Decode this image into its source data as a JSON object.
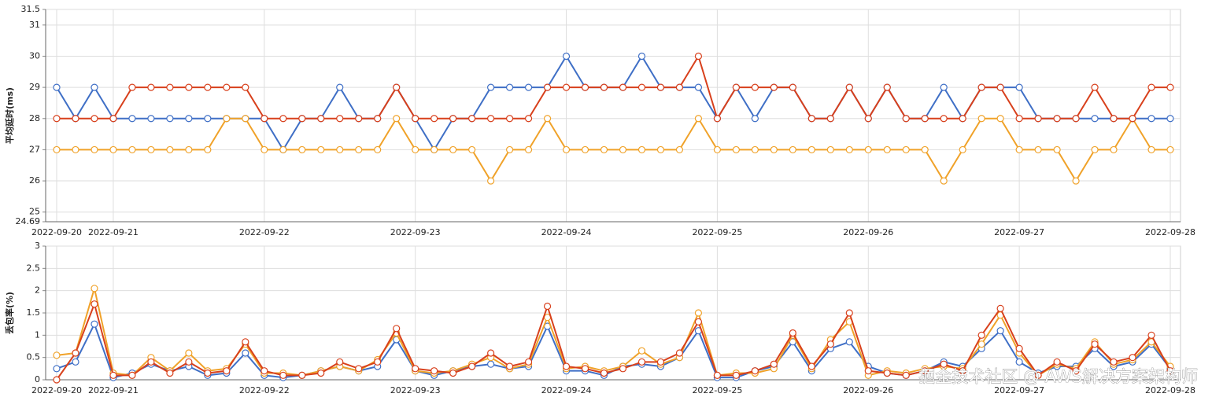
{
  "chart_data": [
    {
      "type": "line",
      "ylabel": "平均延时(ms)",
      "categories": [
        "2022-09-20",
        null,
        null,
        "2022-09-21",
        null,
        null,
        null,
        null,
        null,
        null,
        null,
        "2022-09-22",
        null,
        null,
        null,
        null,
        null,
        null,
        null,
        "2022-09-23",
        null,
        null,
        null,
        null,
        null,
        null,
        null,
        "2022-09-24",
        null,
        null,
        null,
        null,
        null,
        null,
        null,
        "2022-09-25",
        null,
        null,
        null,
        null,
        null,
        null,
        null,
        "2022-09-26",
        null,
        null,
        null,
        null,
        null,
        null,
        null,
        "2022-09-27",
        null,
        null,
        null,
        null,
        null,
        null,
        null,
        "2022-09-28"
      ],
      "ylim": [
        24.69,
        31.5
      ],
      "yticks": [
        24.69,
        25,
        26,
        27,
        28,
        29,
        30,
        31,
        31.5
      ],
      "grid": true,
      "series": [
        {
          "color": "#3f6fc6",
          "values": [
            29,
            28,
            29,
            28,
            28,
            28,
            28,
            28,
            28,
            28,
            28,
            28,
            27,
            28,
            28,
            29,
            28,
            28,
            29,
            28,
            27,
            28,
            28,
            29,
            29,
            29,
            29,
            30,
            29,
            29,
            29,
            30,
            29,
            29,
            29,
            28,
            29,
            28,
            29,
            29,
            28,
            28,
            29,
            28,
            29,
            28,
            28,
            29,
            28,
            29,
            29,
            29,
            28,
            28,
            28,
            28,
            28,
            28,
            28,
            28
          ]
        },
        {
          "color": "#f0a229",
          "values": [
            27,
            27,
            27,
            27,
            27,
            27,
            27,
            27,
            27,
            28,
            28,
            27,
            27,
            27,
            27,
            27,
            27,
            27,
            28,
            27,
            27,
            27,
            27,
            26,
            27,
            27,
            28,
            27,
            27,
            27,
            27,
            27,
            27,
            27,
            28,
            27,
            27,
            27,
            27,
            27,
            27,
            27,
            27,
            27,
            27,
            27,
            27,
            26,
            27,
            28,
            28,
            27,
            27,
            27,
            26,
            27,
            27,
            28,
            27,
            27
          ]
        },
        {
          "color": "#d8401c",
          "values": [
            28,
            28,
            28,
            28,
            29,
            29,
            29,
            29,
            29,
            29,
            29,
            28,
            28,
            28,
            28,
            28,
            28,
            28,
            29,
            28,
            28,
            28,
            28,
            28,
            28,
            28,
            29,
            29,
            29,
            29,
            29,
            29,
            29,
            29,
            30,
            28,
            29,
            29,
            29,
            29,
            28,
            28,
            29,
            28,
            29,
            28,
            28,
            28,
            28,
            29,
            29,
            28,
            28,
            28,
            28,
            29,
            28,
            28,
            29,
            29
          ]
        }
      ]
    },
    {
      "type": "line",
      "ylabel": "丢包率(%)",
      "categories": [
        "2022-09-20",
        null,
        null,
        "2022-09-21",
        null,
        null,
        null,
        null,
        null,
        null,
        null,
        "2022-09-22",
        null,
        null,
        null,
        null,
        null,
        null,
        null,
        "2022-09-23",
        null,
        null,
        null,
        null,
        null,
        null,
        null,
        "2022-09-24",
        null,
        null,
        null,
        null,
        null,
        null,
        null,
        "2022-09-25",
        null,
        null,
        null,
        null,
        null,
        null,
        null,
        "2022-09-26",
        null,
        null,
        null,
        null,
        null,
        null,
        null,
        "2022-09-27",
        null,
        null,
        null,
        null,
        null,
        null,
        null,
        "2022-09-28"
      ],
      "ylim": [
        0,
        3
      ],
      "yticks": [
        0,
        0.5,
        1,
        1.5,
        2,
        2.5,
        3
      ],
      "grid": true,
      "series": [
        {
          "color": "#3f6fc6",
          "values": [
            0.25,
            0.4,
            1.25,
            0.05,
            0.15,
            0.35,
            0.2,
            0.3,
            0.1,
            0.15,
            0.6,
            0.1,
            0.05,
            0.1,
            0.2,
            0.3,
            0.2,
            0.3,
            0.9,
            0.2,
            0.1,
            0.2,
            0.3,
            0.35,
            0.25,
            0.3,
            1.2,
            0.2,
            0.2,
            0.1,
            0.3,
            0.35,
            0.3,
            0.5,
            1.1,
            0.05,
            0.05,
            0.2,
            0.3,
            0.85,
            0.2,
            0.7,
            0.85,
            0.3,
            0.15,
            0.1,
            0.2,
            0.4,
            0.3,
            0.7,
            1.1,
            0.4,
            0.15,
            0.3,
            0.3,
            0.7,
            0.3,
            0.4,
            0.8,
            0.25
          ]
        },
        {
          "color": "#f0a229",
          "values": [
            0.55,
            0.6,
            2.05,
            0.15,
            0.1,
            0.5,
            0.2,
            0.6,
            0.2,
            0.25,
            0.8,
            0.15,
            0.15,
            0.1,
            0.2,
            0.3,
            0.2,
            0.45,
            1.05,
            0.2,
            0.15,
            0.2,
            0.35,
            0.5,
            0.25,
            0.35,
            1.4,
            0.25,
            0.3,
            0.2,
            0.3,
            0.65,
            0.35,
            0.5,
            1.5,
            0.1,
            0.15,
            0.15,
            0.25,
            1.0,
            0.25,
            0.9,
            1.3,
            0.1,
            0.2,
            0.15,
            0.25,
            0.3,
            0.25,
            0.8,
            1.45,
            0.6,
            0.1,
            0.35,
            0.25,
            0.85,
            0.35,
            0.45,
            0.85,
            0.3
          ]
        },
        {
          "color": "#d8401c",
          "values": [
            0,
            0.6,
            1.7,
            0.1,
            0.1,
            0.4,
            0.15,
            0.4,
            0.15,
            0.2,
            0.85,
            0.2,
            0.1,
            0.1,
            0.15,
            0.4,
            0.25,
            0.4,
            1.15,
            0.25,
            0.2,
            0.15,
            0.3,
            0.6,
            0.3,
            0.4,
            1.65,
            0.3,
            0.25,
            0.15,
            0.25,
            0.4,
            0.4,
            0.6,
            1.3,
            0.1,
            0.1,
            0.2,
            0.35,
            1.05,
            0.3,
            0.8,
            1.5,
            0.2,
            0.15,
            0.1,
            0.2,
            0.35,
            0.2,
            1.0,
            1.6,
            0.7,
            0.1,
            0.4,
            0.2,
            0.8,
            0.4,
            0.5,
            1.0,
            0.2
          ]
        }
      ]
    }
  ],
  "watermark": "掘金技术社区 @ AWS解决方案架构师"
}
